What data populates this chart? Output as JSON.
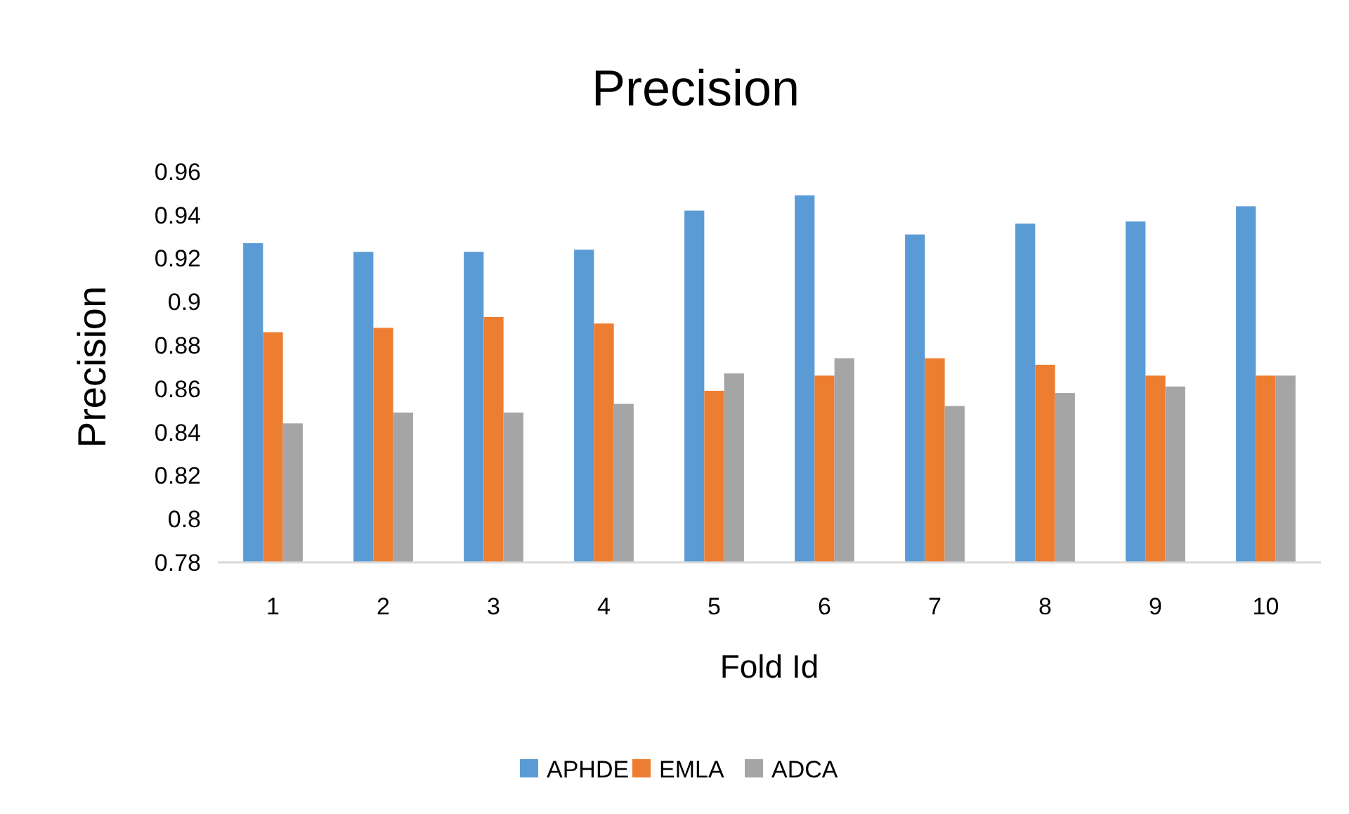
{
  "chart_data": {
    "type": "bar",
    "title": "Precision",
    "xlabel": "Fold Id",
    "ylabel": "Precision",
    "categories": [
      "1",
      "2",
      "3",
      "4",
      "5",
      "6",
      "7",
      "8",
      "9",
      "10"
    ],
    "series": [
      {
        "name": "APHDE",
        "color": "#5b9bd5",
        "values": [
          0.927,
          0.923,
          0.923,
          0.924,
          0.942,
          0.949,
          0.931,
          0.936,
          0.937,
          0.944
        ]
      },
      {
        "name": "EMLA",
        "color": "#ed7d31",
        "values": [
          0.886,
          0.888,
          0.893,
          0.89,
          0.859,
          0.866,
          0.874,
          0.871,
          0.866,
          0.866
        ]
      },
      {
        "name": "ADCA",
        "color": "#a5a5a5",
        "values": [
          0.844,
          0.849,
          0.849,
          0.853,
          0.867,
          0.874,
          0.852,
          0.858,
          0.861,
          0.866
        ]
      }
    ],
    "ylim": [
      0.78,
      0.96
    ],
    "yticks": [
      0.78,
      0.8,
      0.82,
      0.84,
      0.86,
      0.88,
      0.9,
      0.92,
      0.94,
      0.96
    ],
    "grid": false,
    "legend": "bottom"
  }
}
